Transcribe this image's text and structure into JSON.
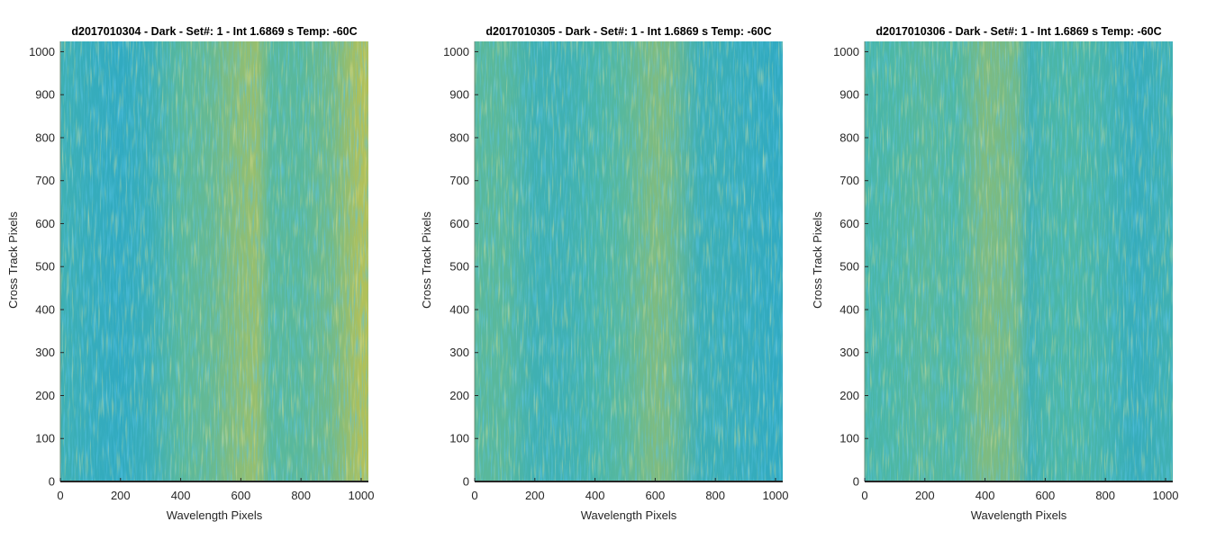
{
  "colors": {
    "colormap_low": "#1fa1d2",
    "colormap_mid": "#4db7a4",
    "colormap_high": "#c9c248",
    "axis": "#262626"
  },
  "chart_data": [
    {
      "type": "heatmap",
      "title": "d2017010304 - Dark - Set#: 1 - Int 1.6869 s Temp: -60C",
      "xlabel": "Wavelength Pixels",
      "ylabel": "Cross Track Pixels",
      "xlim": [
        0,
        1024
      ],
      "ylim": [
        0,
        1024
      ],
      "xticks": [
        0,
        200,
        400,
        600,
        800,
        1000
      ],
      "yticks": [
        0,
        100,
        200,
        300,
        400,
        500,
        600,
        700,
        800,
        900,
        1000
      ],
      "xtick_labels": [
        "0",
        "200",
        "400",
        "600",
        "800",
        "1000"
      ],
      "ytick_labels": [
        "0",
        "100",
        "200",
        "300",
        "400",
        "500",
        "600",
        "700",
        "800",
        "900",
        "1000"
      ],
      "grid": false,
      "column_profile": {
        "wavelength_pixel": [
          0,
          100,
          200,
          300,
          400,
          500,
          600,
          650,
          700,
          800,
          900,
          1000,
          1024
        ],
        "relative_level": [
          0.35,
          0.25,
          0.2,
          0.3,
          0.55,
          0.6,
          0.75,
          0.8,
          0.55,
          0.55,
          0.65,
          0.9,
          0.9
        ]
      }
    },
    {
      "type": "heatmap",
      "title": "d2017010305 - Dark - Set#: 1 - Int 1.6869 s Temp: -60C",
      "xlabel": "Wavelength Pixels",
      "ylabel": "Cross Track Pixels",
      "xlim": [
        0,
        1024
      ],
      "ylim": [
        0,
        1024
      ],
      "xticks": [
        0,
        200,
        400,
        600,
        800,
        1000
      ],
      "yticks": [
        0,
        100,
        200,
        300,
        400,
        500,
        600,
        700,
        800,
        900,
        1000
      ],
      "xtick_labels": [
        "0",
        "200",
        "400",
        "600",
        "800",
        "1000"
      ],
      "ytick_labels": [
        "0",
        "100",
        "200",
        "300",
        "400",
        "500",
        "600",
        "700",
        "800",
        "900",
        "1000"
      ],
      "grid": false,
      "column_profile": {
        "wavelength_pixel": [
          0,
          100,
          200,
          300,
          400,
          500,
          600,
          650,
          750,
          800,
          900,
          1000,
          1024
        ],
        "relative_level": [
          0.55,
          0.55,
          0.35,
          0.35,
          0.45,
          0.55,
          0.7,
          0.65,
          0.3,
          0.3,
          0.25,
          0.2,
          0.2
        ]
      }
    },
    {
      "type": "heatmap",
      "title": "d2017010306 - Dark - Set#: 1 - Int 1.6869 s Temp: -60C",
      "xlabel": "Wavelength Pixels",
      "ylabel": "Cross Track Pixels",
      "xlim": [
        0,
        1024
      ],
      "ylim": [
        0,
        1024
      ],
      "xticks": [
        0,
        200,
        400,
        600,
        800,
        1000
      ],
      "yticks": [
        0,
        100,
        200,
        300,
        400,
        500,
        600,
        700,
        800,
        900,
        1000
      ],
      "xtick_labels": [
        "0",
        "200",
        "400",
        "600",
        "800",
        "1000"
      ],
      "ytick_labels": [
        "0",
        "100",
        "200",
        "300",
        "400",
        "500",
        "600",
        "700",
        "800",
        "900",
        "1000"
      ],
      "grid": false,
      "column_profile": {
        "wavelength_pixel": [
          0,
          100,
          200,
          300,
          400,
          500,
          550,
          600,
          700,
          800,
          900,
          1000,
          1024
        ],
        "relative_level": [
          0.45,
          0.5,
          0.55,
          0.5,
          0.7,
          0.65,
          0.35,
          0.45,
          0.5,
          0.4,
          0.25,
          0.35,
          0.35
        ]
      }
    }
  ]
}
